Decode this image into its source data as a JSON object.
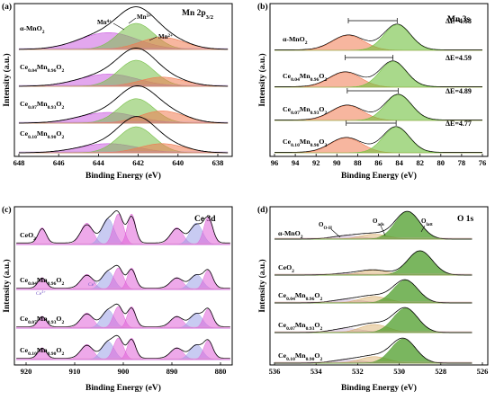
{
  "colors": {
    "envelope": "#000000",
    "mn4": "#cc5fe0",
    "mn3": "#78c048",
    "mn2": "#f07a50",
    "mn3s_a": "#f07a50",
    "mn3s_b": "#6fbf3e",
    "ce_pink": "#e062d8",
    "ce_blue": "#9aa0e8",
    "o_green": "#4e9e2a",
    "o_ads": "#d8a860",
    "o_oh": "#c8b0d0",
    "baseline_mn": "#b98ad0",
    "baseline_ce": "#e8a0c8",
    "baseline_o": "#d8a0a0"
  },
  "panels": {
    "a": {
      "letter": "(a)",
      "title": "Mn 2p",
      "title_sub": "3/2",
      "xlabel": "Binding Energy (eV)",
      "ylabel": "Intensity (a.u.)",
      "ticks": [
        "648",
        "646",
        "644",
        "642",
        "640",
        "638"
      ],
      "labels": {
        "mn4": "Mn",
        "mn4_sup": "4+",
        "mn3": "Mn",
        "mn3_sup": "3+",
        "mn2": "Mn",
        "mn2_sup": "2+"
      },
      "samples": [
        {
          "pre": "α-MnO",
          "s1": "2",
          "mid": "",
          "s2": "",
          "post": "",
          "s3": ""
        },
        {
          "pre": "Ce",
          "s1": "0.04",
          "mid": "Mn",
          "s2": "0.96",
          "post": "O",
          "s3": "2"
        },
        {
          "pre": "Ce",
          "s1": "0.07",
          "mid": "Mn",
          "s2": "0.93",
          "post": "O",
          "s3": "2"
        },
        {
          "pre": "Ce",
          "s1": "0.10",
          "mid": "Mn",
          "s2": "0.90",
          "post": "O",
          "s3": "2"
        }
      ]
    },
    "b": {
      "letter": "(b)",
      "title": "Mn 3s",
      "xlabel": "Binding Energy (eV)",
      "ylabel": "Intensity (a.u.)",
      "ticks": [
        "96",
        "94",
        "92",
        "90",
        "88",
        "86",
        "84",
        "82",
        "80",
        "78",
        "76"
      ],
      "deltas": [
        "ΔE=4.68",
        "ΔE=4.59",
        "ΔE=4.89",
        "ΔE=4.77"
      ],
      "samples": [
        {
          "pre": "α-MnO",
          "s1": "2",
          "mid": "",
          "s2": "",
          "post": "",
          "s3": ""
        },
        {
          "pre": "Ce",
          "s1": "0.04",
          "mid": "Mn",
          "s2": "0.96",
          "post": "O",
          "s3": "2"
        },
        {
          "pre": "Ce",
          "s1": "0.07",
          "mid": "Mn",
          "s2": "0.93",
          "post": "O",
          "s3": "2"
        },
        {
          "pre": "Ce",
          "s1": "0.10",
          "mid": "Mn",
          "s2": "0.90",
          "post": "O",
          "s3": "2"
        }
      ]
    },
    "c": {
      "letter": "(c)",
      "title": "Ce 3d",
      "xlabel": "Binding Energy (eV)",
      "ylabel": "Intensity (a.u.)",
      "ticks": [
        "920",
        "910",
        "900",
        "890",
        "880"
      ],
      "ce_labels": {
        "ce4": "Ce",
        "ce4_sup": "4+",
        "ce3": "Ce",
        "ce3_sup": "3+"
      },
      "samples": [
        {
          "pre": "CeO",
          "s1": "2",
          "mid": "",
          "s2": "",
          "post": "",
          "s3": ""
        },
        {
          "pre": "Ce",
          "s1": "0.04",
          "mid": "Mn",
          "s2": "0.96",
          "post": "O",
          "s3": "2"
        },
        {
          "pre": "Ce",
          "s1": "0.07",
          "mid": "Mn",
          "s2": "0.93",
          "post": "O",
          "s3": "2"
        },
        {
          "pre": "Ce",
          "s1": "0.10",
          "mid": "Mn",
          "s2": "0.90",
          "post": "O",
          "s3": "2"
        }
      ]
    },
    "d": {
      "letter": "(d)",
      "title": "O 1s",
      "xlabel": "Binding Energy (eV)",
      "ylabel": "Intensity (a.u.)",
      "ticks": [
        "536",
        "534",
        "532",
        "530",
        "528",
        "526"
      ],
      "labels": {
        "ooh": "O",
        "ooh_sub": "O-H",
        "oads": "O",
        "oads_sub": "ads",
        "olatt": "O",
        "olatt_sub": "latt"
      },
      "samples": [
        {
          "pre": "α-MnO",
          "s1": "2",
          "mid": "",
          "s2": "",
          "post": "",
          "s3": ""
        },
        {
          "pre": "CeO",
          "s1": "2",
          "mid": "",
          "s2": "",
          "post": "",
          "s3": ""
        },
        {
          "pre": "Ce",
          "s1": "0.04",
          "mid": "Mn",
          "s2": "0.96",
          "post": "O",
          "s3": "2"
        },
        {
          "pre": "Ce",
          "s1": "0.07",
          "mid": "Mn",
          "s2": "0.93",
          "post": "O",
          "s3": "2"
        },
        {
          "pre": "Ce",
          "s1": "0.10",
          "mid": "Mn",
          "s2": "0.90",
          "post": "O",
          "s3": "2"
        }
      ]
    }
  },
  "chart_data": [
    {
      "type": "line",
      "title": "Mn 2p3/2",
      "xlabel": "Binding Energy (eV)",
      "ylabel": "Intensity (a.u.)",
      "xlim": [
        648,
        637
      ],
      "x_reversed": true,
      "components": [
        {
          "name": "Mn4+",
          "center": 643.5,
          "fwhm": 3.4
        },
        {
          "name": "Mn3+",
          "center": 642.1,
          "fwhm": 2.1
        },
        {
          "name": "Mn2+",
          "center": 640.8,
          "fwhm": 2.6
        }
      ],
      "series": [
        {
          "name": "α-MnO2",
          "amplitudes": [
            0.55,
            0.85,
            0.4
          ]
        },
        {
          "name": "Ce0.04Mn0.96O2",
          "amplitudes": [
            0.4,
            0.85,
            0.3
          ]
        },
        {
          "name": "Ce0.07Mn0.93O2",
          "amplitudes": [
            0.35,
            0.8,
            0.4
          ]
        },
        {
          "name": "Ce0.10Mn0.90O2",
          "amplitudes": [
            0.3,
            0.85,
            0.3
          ]
        }
      ]
    },
    {
      "type": "line",
      "title": "Mn 3s",
      "xlabel": "Binding Energy (eV)",
      "ylabel": "Intensity (a.u.)",
      "xlim": [
        96,
        76
      ],
      "x_reversed": true,
      "series": [
        {
          "name": "α-MnO2",
          "peak_low": 84.2,
          "peak_high": 88.9,
          "delta_E": 4.68
        },
        {
          "name": "Ce0.04Mn0.96O2",
          "peak_low": 84.6,
          "peak_high": 89.2,
          "delta_E": 4.59
        },
        {
          "name": "Ce0.07Mn0.93O2",
          "peak_low": 84.1,
          "peak_high": 89.0,
          "delta_E": 4.89
        },
        {
          "name": "Ce0.10Mn0.90O2",
          "peak_low": 84.3,
          "peak_high": 89.1,
          "delta_E": 4.77
        }
      ]
    },
    {
      "type": "line",
      "title": "Ce 3d",
      "xlabel": "Binding Energy (eV)",
      "ylabel": "Intensity (a.u.)",
      "xlim": [
        922,
        878
      ],
      "x_reversed": true,
      "components": [
        {
          "name": "Ce4+ u'''",
          "center": 916.7,
          "fwhm": 2.0
        },
        {
          "name": "Ce4+ u''",
          "center": 907.5,
          "fwhm": 3.0
        },
        {
          "name": "Ce3+ u'",
          "center": 903.2,
          "fwhm": 3.0
        },
        {
          "name": "Ce4+ u",
          "center": 901.0,
          "fwhm": 2.4
        },
        {
          "name": "Ce4+ v'''",
          "center": 898.3,
          "fwhm": 2.0
        },
        {
          "name": "Ce4+ v''",
          "center": 889.0,
          "fwhm": 3.0
        },
        {
          "name": "Ce3+ v'",
          "center": 885.0,
          "fwhm": 3.0
        },
        {
          "name": "Ce4+ v",
          "center": 882.5,
          "fwhm": 2.2
        }
      ],
      "series": [
        {
          "name": "CeO2",
          "relative_scale": 1.0
        },
        {
          "name": "Ce0.04Mn0.96O2",
          "relative_scale": 0.8
        },
        {
          "name": "Ce0.07Mn0.93O2",
          "relative_scale": 0.8
        },
        {
          "name": "Ce0.10Mn0.90O2",
          "relative_scale": 0.8
        }
      ]
    },
    {
      "type": "line",
      "title": "O 1s",
      "xlabel": "Binding Energy (eV)",
      "ylabel": "Intensity (a.u.)",
      "xlim": [
        536,
        526
      ],
      "x_reversed": true,
      "components": [
        {
          "name": "O(O-H)",
          "center": 532.5,
          "fwhm": 1.8
        },
        {
          "name": "O(ads)",
          "center": 531.2,
          "fwhm": 1.6
        },
        {
          "name": "O(latt)",
          "center": 529.6,
          "fwhm": 1.4
        }
      ],
      "series": [
        {
          "name": "α-MnO2",
          "latt_center": 529.6,
          "amplitudes": [
            0.1,
            0.15,
            0.85
          ]
        },
        {
          "name": "CeO2",
          "latt_center": 529.0,
          "amplitudes": [
            0.05,
            0.15,
            0.75
          ]
        },
        {
          "name": "Ce0.04Mn0.96O2",
          "latt_center": 529.7,
          "amplitudes": [
            0.1,
            0.2,
            0.7
          ]
        },
        {
          "name": "Ce0.07Mn0.93O2",
          "latt_center": 529.7,
          "amplitudes": [
            0.12,
            0.25,
            0.75
          ]
        },
        {
          "name": "Ce0.10Mn0.90O2",
          "latt_center": 529.8,
          "amplitudes": [
            0.1,
            0.2,
            0.75
          ]
        }
      ]
    }
  ]
}
